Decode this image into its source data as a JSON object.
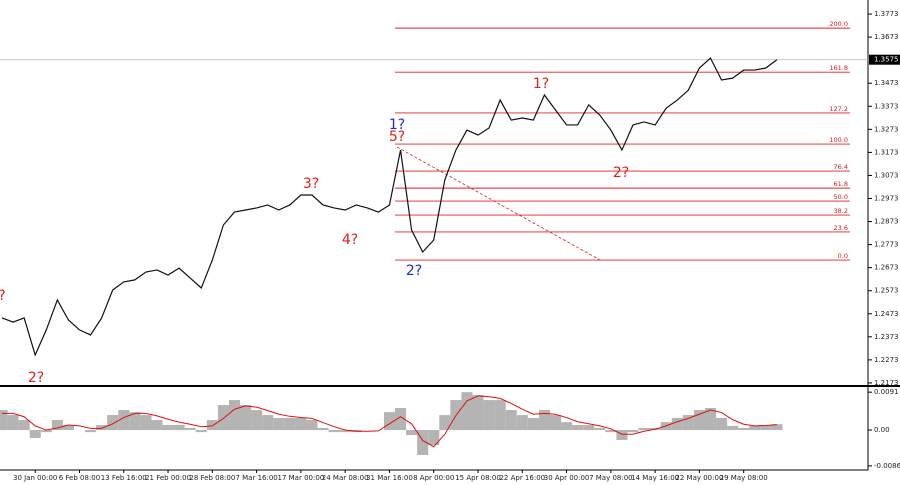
{
  "chart_data": [
    {
      "type": "line",
      "color": "#111111",
      "categories": [
        null,
        null,
        null,
        "30 Jan 00:00",
        null,
        null,
        null,
        "6 Feb 08:00",
        null,
        null,
        null,
        "13 Feb 16:00",
        null,
        null,
        null,
        "21 Feb 00:00",
        null,
        null,
        null,
        "28 Feb 08:00",
        null,
        null,
        null,
        "7 Mar 16:00",
        null,
        null,
        null,
        "17 Mar 00:00",
        null,
        null,
        null,
        "24 Mar 08:00",
        null,
        null,
        null,
        "31 Mar 16:00",
        null,
        null,
        null,
        "8 Apr 00:00",
        null,
        null,
        null,
        "15 Apr 08:00",
        null,
        null,
        null,
        "22 Apr 16:00",
        null,
        null,
        null,
        "30 Apr 00:00",
        null,
        null,
        null,
        "7 May 08:00",
        null,
        null,
        null,
        "14 May 16:00",
        null,
        null,
        null,
        "22 May 00:00",
        null,
        null,
        null,
        "29 May 08:00",
        null,
        null,
        null
      ],
      "values": [
        1.2455,
        1.2437,
        1.2455,
        1.2294,
        1.2403,
        1.2533,
        1.2446,
        1.2403,
        1.2381,
        1.2455,
        1.2576,
        1.2611,
        1.262,
        1.2654,
        1.2663,
        1.2641,
        1.2671,
        1.2628,
        1.2585,
        1.2706,
        1.2858,
        1.2914,
        1.2923,
        1.2932,
        1.2945,
        1.2923,
        1.2945,
        1.2988,
        1.2988,
        1.2945,
        1.2932,
        1.2923,
        1.2945,
        1.2932,
        1.2914,
        1.2945,
        1.3183,
        1.2836,
        1.2741,
        1.2793,
        1.3053,
        1.3183,
        1.327,
        1.3248,
        1.3279,
        1.34,
        1.3313,
        1.3322,
        1.3313,
        1.3422,
        1.3357,
        1.3292,
        1.3292,
        1.3379,
        1.3335,
        1.327,
        1.3183,
        1.3292,
        1.3305,
        1.3292,
        1.3365,
        1.34,
        1.3443,
        1.3539,
        1.3582,
        1.3487,
        1.3495,
        1.353,
        1.353,
        1.3539,
        1.3575
      ],
      "ylim": [
        1.2164,
        1.3834
      ],
      "yticks": [
        1.3773,
        1.3673,
        1.3473,
        1.3373,
        1.3273,
        1.3173,
        1.3073,
        1.2973,
        1.2873,
        1.2773,
        1.2673,
        1.2573,
        1.2473,
        1.2373,
        1.2273,
        1.2173
      ],
      "last_price": 1.3575,
      "fib_color": "#e02020",
      "fib_levels": [
        {
          "label": "200.0",
          "price": 1.3712
        },
        {
          "label": "161.8",
          "price": 1.3521
        },
        {
          "label": "127.2",
          "price": 1.3344
        },
        {
          "label": "100.0",
          "price": 1.3209
        },
        {
          "label": "76.4",
          "price": 1.3092
        },
        {
          "label": "61.8",
          "price": 1.3018
        },
        {
          "label": "50.0",
          "price": 1.2962
        },
        {
          "label": "38.2",
          "price": 1.2901
        },
        {
          "label": "23.6",
          "price": 1.2828
        },
        {
          "label": "0.0",
          "price": 1.2706
        }
      ],
      "annotations": [
        {
          "text": "?",
          "color": "#e0201c"
        },
        {
          "text": "2?",
          "color": "#e0201c"
        },
        {
          "text": "3?",
          "color": "#e0201c"
        },
        {
          "text": "4?",
          "color": "#e0201c"
        },
        {
          "text": "1?",
          "color": "#1a2fd0"
        },
        {
          "text": "5?",
          "color": "#e0201c"
        },
        {
          "text": "2?",
          "color": "#1a2fd0"
        },
        {
          "text": "1?",
          "color": "#e0201c"
        },
        {
          "text": "2?",
          "color": "#e0201c"
        }
      ]
    },
    {
      "type": "macd",
      "color": "#b4b4b4",
      "line_color": "#e01010",
      "values": [
        0.0048,
        0.0036,
        0.0024,
        -0.0019,
        -0.0005,
        0.0024,
        0.0012,
        0,
        -0.0005,
        0.0012,
        0.0036,
        0.0048,
        0.0043,
        0.0036,
        0.0024,
        0.0012,
        0.0012,
        0.0005,
        -0.0005,
        0.0024,
        0.006,
        0.0072,
        0.006,
        0.0048,
        0.0036,
        0.0029,
        0.0029,
        0.0029,
        0.0024,
        0.0005,
        -0.0005,
        -0.0005,
        -0.0005,
        0,
        0,
        0.0043,
        0.0053,
        -0.0012,
        -0.006,
        -0.0036,
        0.0036,
        0.0072,
        0.0091,
        0.0084,
        0.0072,
        0.0072,
        0.0048,
        0.0036,
        0.0029,
        0.0048,
        0.0036,
        0.0019,
        0.0012,
        0.0012,
        0.0005,
        -0.0005,
        -0.0024,
        -0.0005,
        0.0005,
        0.0005,
        0.0019,
        0.0029,
        0.0036,
        0.0048,
        0.0053,
        0.0029,
        0.001,
        0.0005,
        0.001,
        0.0012,
        0.0014
      ],
      "line_values": [
        0.004,
        0.004,
        0.0032,
        0.001,
        0,
        0.0005,
        0.0012,
        0.001,
        0.0004,
        0.0004,
        0.0015,
        0.003,
        0.004,
        0.004,
        0.0034,
        0.0026,
        0.0019,
        0.0014,
        0.0008,
        0.001,
        0.0028,
        0.005,
        0.0058,
        0.0055,
        0.0047,
        0.0038,
        0.0033,
        0.003,
        0.0028,
        0.0018,
        0.0008,
        0,
        -0.0003,
        -0.0003,
        -0.0002,
        0.0015,
        0.0032,
        0.0015,
        -0.0025,
        -0.004,
        -0.001,
        0.0035,
        0.007,
        0.0082,
        0.008,
        0.0076,
        0.0064,
        0.005,
        0.0038,
        0.004,
        0.0038,
        0.003,
        0.002,
        0.0015,
        0.001,
        0.0003,
        -0.001,
        -0.001,
        -0.0003,
        0.0002,
        0.001,
        0.002,
        0.0028,
        0.0038,
        0.0048,
        0.0042,
        0.0025,
        0.0014,
        0.001,
        0.0011,
        0.0013
      ],
      "ylim": [
        -0.0096,
        0.0101
      ],
      "yticks": [
        0.0091,
        {
          "value": 0,
          "label": "0.00"
        },
        -0.00862
      ]
    }
  ]
}
